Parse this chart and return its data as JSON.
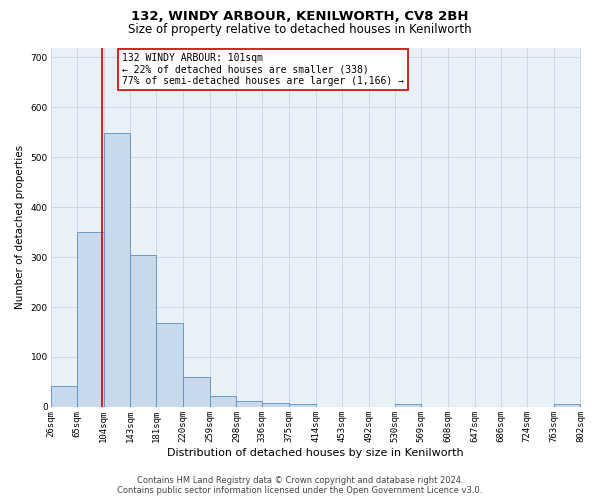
{
  "title": "132, WINDY ARBOUR, KENILWORTH, CV8 2BH",
  "subtitle": "Size of property relative to detached houses in Kenilworth",
  "xlabel": "Distribution of detached houses by size in Kenilworth",
  "ylabel": "Number of detached properties",
  "footer_line1": "Contains HM Land Registry data © Crown copyright and database right 2024.",
  "footer_line2": "Contains public sector information licensed under the Open Government Licence v3.0.",
  "bin_edges": [
    26,
    65,
    104,
    143,
    181,
    220,
    259,
    298,
    336,
    375,
    414,
    453,
    492,
    530,
    569,
    608,
    647,
    686,
    724,
    763,
    802
  ],
  "bin_labels": [
    "26sqm",
    "65sqm",
    "104sqm",
    "143sqm",
    "181sqm",
    "220sqm",
    "259sqm",
    "298sqm",
    "336sqm",
    "375sqm",
    "414sqm",
    "453sqm",
    "492sqm",
    "530sqm",
    "569sqm",
    "608sqm",
    "647sqm",
    "686sqm",
    "724sqm",
    "763sqm",
    "802sqm"
  ],
  "bar_heights": [
    42,
    350,
    548,
    305,
    168,
    60,
    22,
    12,
    8,
    5,
    0,
    0,
    0,
    5,
    0,
    0,
    0,
    0,
    0,
    5
  ],
  "bar_color": "#c9d9ec",
  "bar_edge_color": "#5a8fc2",
  "vline_x": 101,
  "vline_color": "#cc0000",
  "annotation_line1": "132 WINDY ARBOUR: 101sqm",
  "annotation_line2": "← 22% of detached houses are smaller (338)",
  "annotation_line3": "77% of semi-detached houses are larger (1,166) →",
  "annotation_box_color": "#ffffff",
  "annotation_box_edge": "#cc0000",
  "ylim": [
    0,
    720
  ],
  "yticks": [
    0,
    100,
    200,
    300,
    400,
    500,
    600,
    700
  ],
  "xlim": [
    26,
    802
  ],
  "background_color": "#ffffff",
  "plot_bg_color": "#e8f0f8",
  "grid_color": "#c8d4e3",
  "title_fontsize": 9.5,
  "subtitle_fontsize": 8.5,
  "xlabel_fontsize": 8,
  "ylabel_fontsize": 7.5,
  "tick_fontsize": 6.5,
  "annot_fontsize": 7,
  "footer_fontsize": 6
}
